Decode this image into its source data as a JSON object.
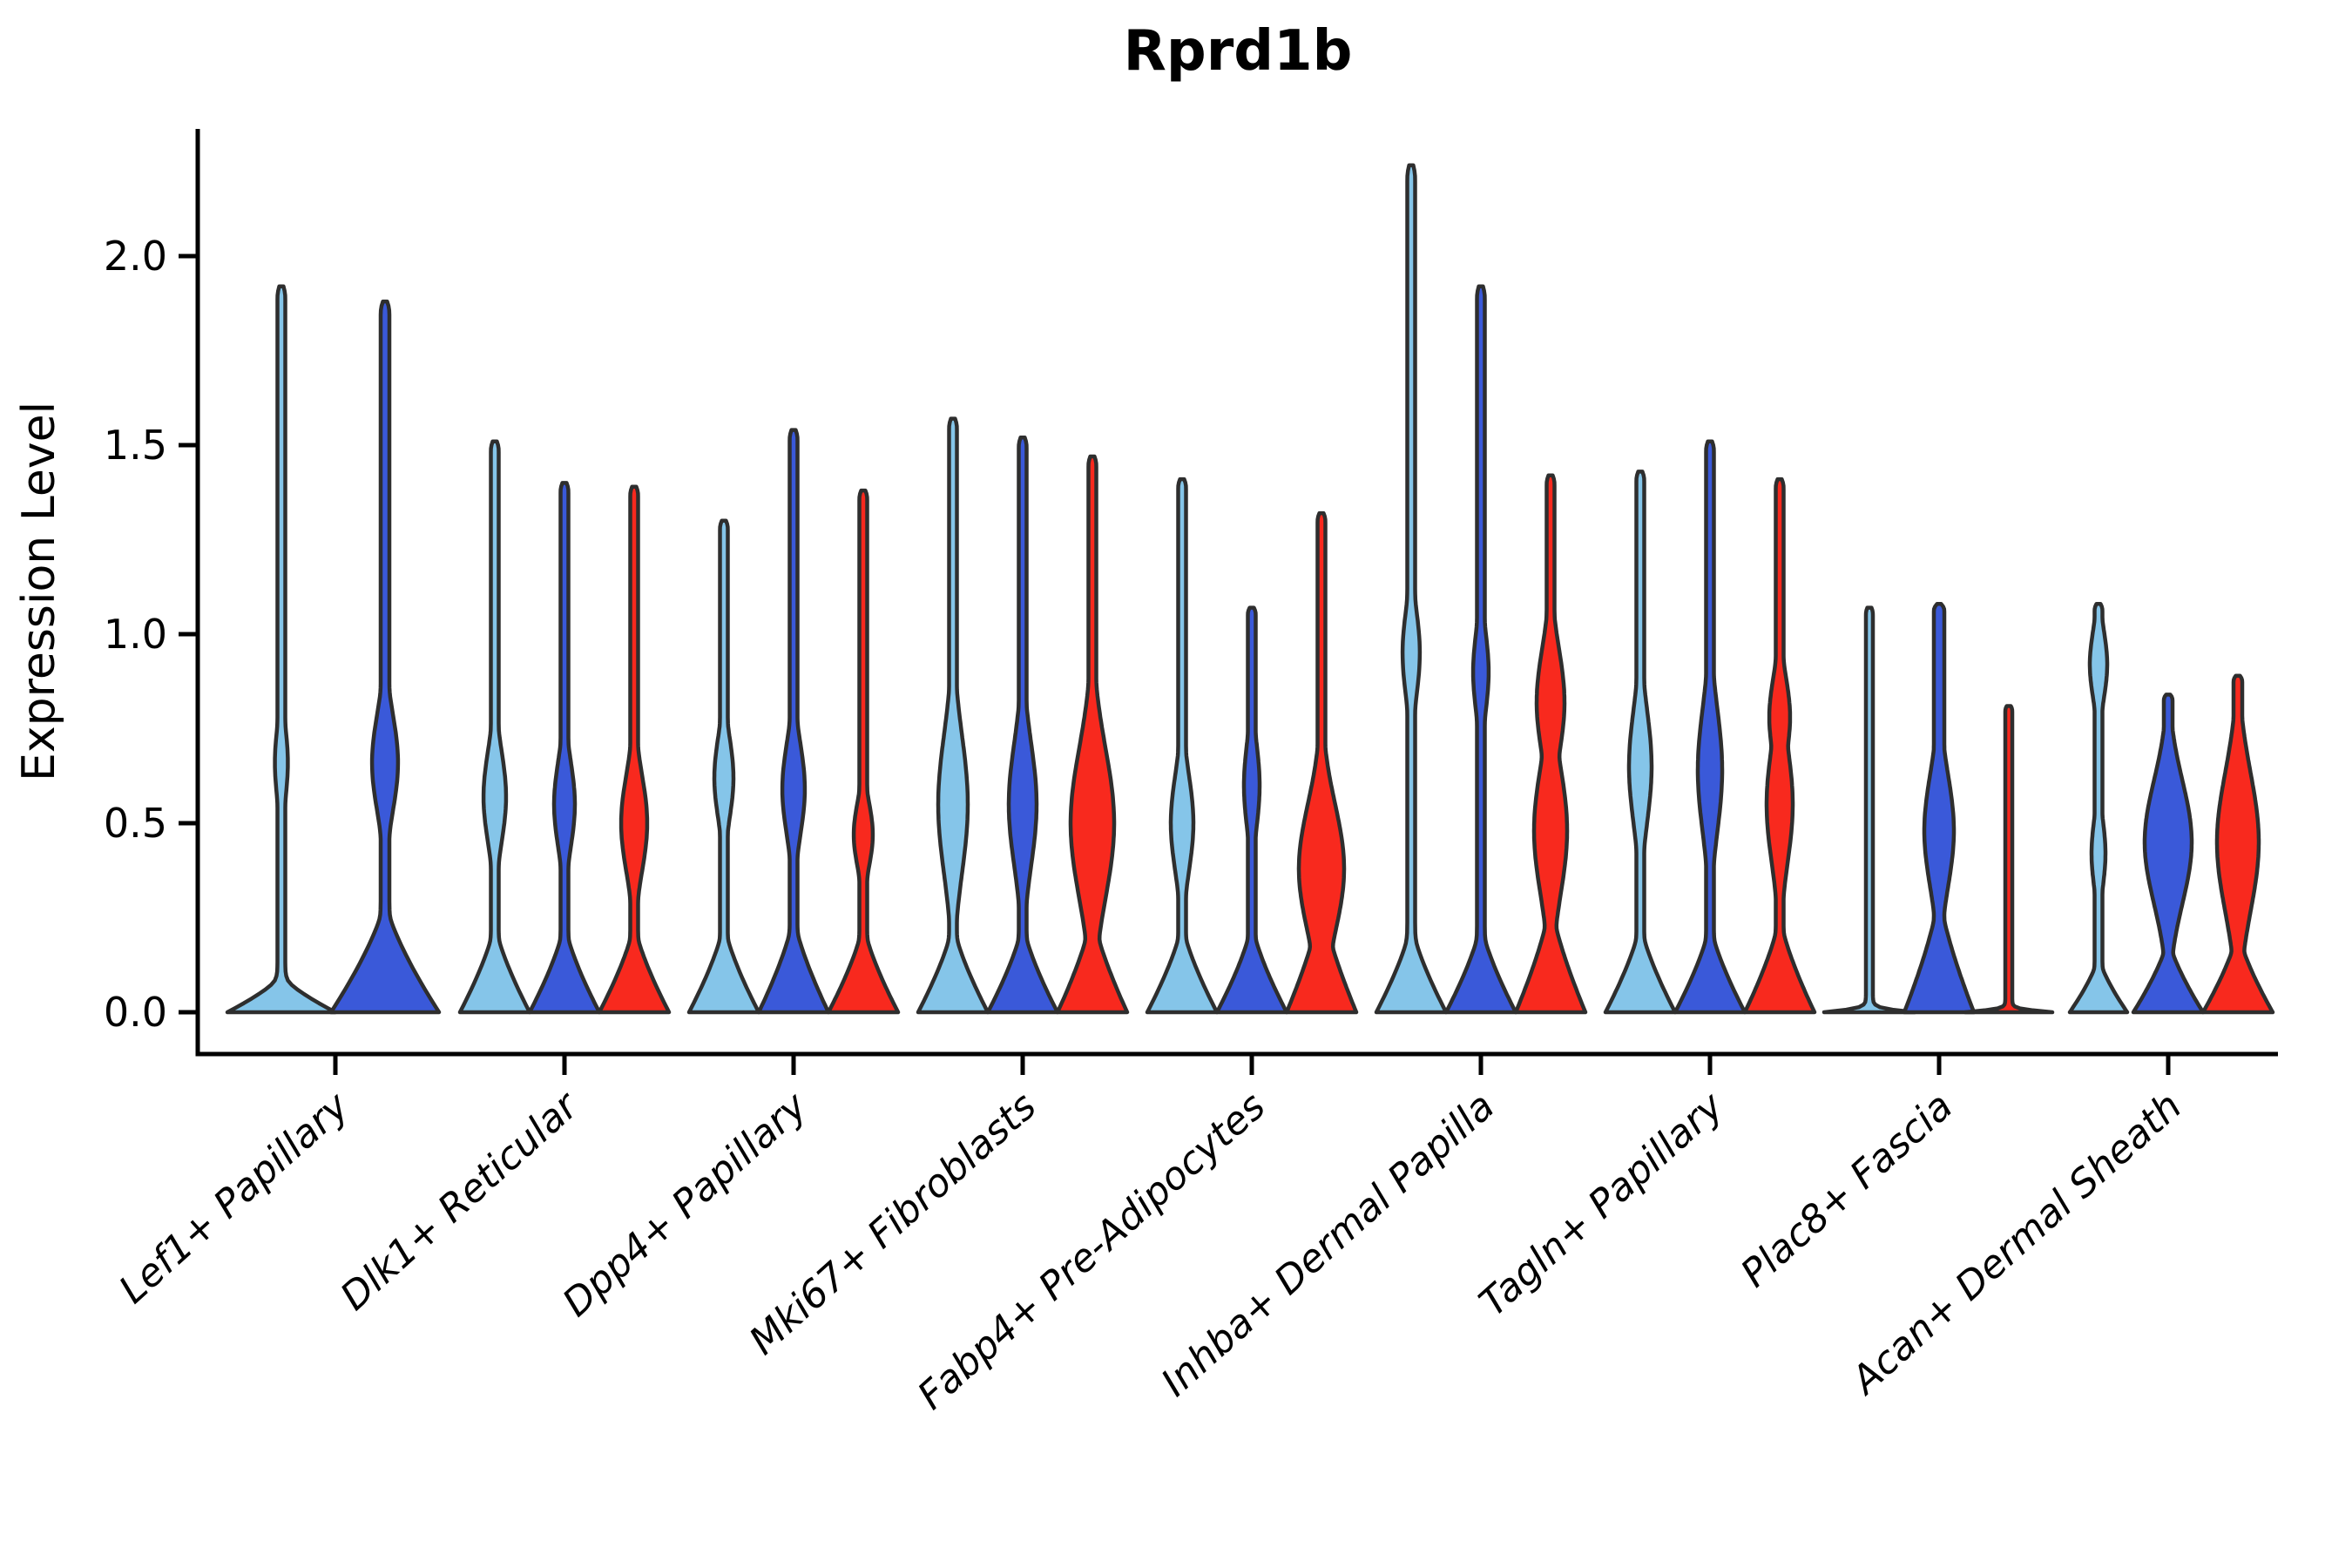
{
  "chart_data": {
    "type": "violin",
    "title": "Rprd1b",
    "ylabel": "Expression Level",
    "xlabel": "",
    "grid": false,
    "legend_position": "none",
    "ylim": [
      -0.11,
      2.34
    ],
    "yticks": {
      "values": [
        0,
        0.5,
        1.0,
        1.5,
        2.0
      ],
      "labels": [
        "0.0",
        "0.5",
        "1.0",
        "1.5",
        "2.0"
      ]
    },
    "series_order": [
      "light_blue",
      "blue",
      "red"
    ],
    "series_colors": {
      "light_blue": "#85C5E9",
      "blue": "#3A59D9",
      "red": "#F8291E"
    },
    "outline_color": "#2E2E2E",
    "axis_color": "#000000",
    "categories": [
      "Lef1+ Papillary",
      "Dlk1+ Reticular",
      "Dpp4+ Papillary",
      "Mki67+ Fibroblasts",
      "Fabp4+ Pre-Adipocytes",
      "Inhba+ Dermal Papilla",
      "Tagln+ Papillary",
      "Plac8+ Fascia",
      "Acan+ Dermal Sheath"
    ],
    "groups": [
      {
        "category": "Lef1+ Papillary",
        "violins": [
          {
            "series": "light_blue",
            "max": 1.92,
            "offset": -62,
            "base_hw": 62,
            "base_h": 0.1,
            "stem_hw": 4.5,
            "bulges": [
              {
                "c": 0.66,
                "h": 0.14,
                "hw": 7.5
              }
            ]
          },
          {
            "series": "blue",
            "max": 1.88,
            "offset": 57,
            "base_hw": 62,
            "base_h": 0.3,
            "stem_hw": 5,
            "bulges": [
              {
                "c": 0.66,
                "h": 0.18,
                "hw": 15
              }
            ]
          }
        ]
      },
      {
        "category": "Dlk1+ Reticular",
        "violins": [
          {
            "series": "light_blue",
            "max": 1.51,
            "offset": -80,
            "base_hw": 40,
            "base_h": 0.24,
            "stem_hw": 4.5,
            "bulges": [
              {
                "c": 0.57,
                "h": 0.17,
                "hw": 13
              }
            ]
          },
          {
            "series": "blue",
            "max": 1.4,
            "offset": 0,
            "base_hw": 40,
            "base_h": 0.24,
            "stem_hw": 4.5,
            "bulges": [
              {
                "c": 0.55,
                "h": 0.16,
                "hw": 12
              }
            ]
          },
          {
            "series": "red",
            "max": 1.39,
            "offset": 80,
            "base_hw": 40,
            "base_h": 0.24,
            "stem_hw": 4.5,
            "bulges": [
              {
                "c": 0.5,
                "h": 0.18,
                "hw": 15
              }
            ]
          }
        ]
      },
      {
        "category": "Dpp4+ Papillary",
        "violins": [
          {
            "series": "light_blue",
            "max": 1.3,
            "offset": -80,
            "base_hw": 40,
            "base_h": 0.24,
            "stem_hw": 4.5,
            "bulges": [
              {
                "c": 0.62,
                "h": 0.15,
                "hw": 11
              }
            ]
          },
          {
            "series": "blue",
            "max": 1.54,
            "offset": 0,
            "base_hw": 40,
            "base_h": 0.26,
            "stem_hw": 4.5,
            "bulges": [
              {
                "c": 0.59,
                "h": 0.17,
                "hw": 13
              }
            ]
          },
          {
            "series": "red",
            "max": 1.38,
            "offset": 80,
            "base_hw": 40,
            "base_h": 0.24,
            "stem_hw": 4.5,
            "bulges": [
              {
                "c": 0.47,
                "h": 0.12,
                "hw": 11
              }
            ]
          }
        ]
      },
      {
        "category": "Mki67+ Fibroblasts",
        "violins": [
          {
            "series": "light_blue",
            "max": 1.57,
            "offset": -80,
            "base_hw": 40,
            "base_h": 0.24,
            "stem_hw": 4.5,
            "bulges": [
              {
                "c": 0.55,
                "h": 0.26,
                "hw": 17
              }
            ]
          },
          {
            "series": "blue",
            "max": 1.52,
            "offset": 0,
            "base_hw": 40,
            "base_h": 0.24,
            "stem_hw": 4.5,
            "bulges": [
              {
                "c": 0.55,
                "h": 0.23,
                "hw": 16
              }
            ]
          },
          {
            "series": "red",
            "max": 1.47,
            "offset": 80,
            "base_hw": 40,
            "base_h": 0.27,
            "stem_hw": 4.5,
            "bulges": [
              {
                "c": 0.5,
                "h": 0.28,
                "hw": 25
              }
            ]
          }
        ]
      },
      {
        "category": "Fabp4+ Pre-Adipocytes",
        "violins": [
          {
            "series": "light_blue",
            "max": 1.41,
            "offset": -80,
            "base_hw": 40,
            "base_h": 0.24,
            "stem_hw": 4.5,
            "bulges": [
              {
                "c": 0.5,
                "h": 0.18,
                "hw": 13
              }
            ]
          },
          {
            "series": "blue",
            "max": 1.07,
            "offset": 0,
            "base_hw": 40,
            "base_h": 0.24,
            "stem_hw": 4.5,
            "bulges": [
              {
                "c": 0.6,
                "h": 0.16,
                "hw": 9
              }
            ]
          },
          {
            "series": "red",
            "max": 1.32,
            "offset": 80,
            "base_hw": 40,
            "base_h": 0.3,
            "stem_hw": 4.5,
            "bulges": [
              {
                "c": 0.38,
                "h": 0.24,
                "hw": 26
              }
            ]
          }
        ]
      },
      {
        "category": "Inhba+ Dermal Papilla",
        "violins": [
          {
            "series": "light_blue",
            "max": 2.24,
            "offset": -80,
            "base_hw": 40,
            "base_h": 0.24,
            "stem_hw": 4.5,
            "bulges": [
              {
                "c": 0.95,
                "h": 0.16,
                "hw": 10
              }
            ]
          },
          {
            "series": "blue",
            "max": 1.92,
            "offset": 0,
            "base_hw": 40,
            "base_h": 0.24,
            "stem_hw": 4.5,
            "bulges": [
              {
                "c": 0.9,
                "h": 0.15,
                "hw": 9
              }
            ]
          },
          {
            "series": "red",
            "max": 1.42,
            "offset": 80,
            "base_hw": 40,
            "base_h": 0.3,
            "stem_hw": 4.5,
            "bulges": [
              {
                "c": 0.48,
                "h": 0.24,
                "hw": 19
              },
              {
                "c": 0.82,
                "h": 0.2,
                "hw": 16
              }
            ]
          }
        ]
      },
      {
        "category": "Tagln+ Papillary",
        "violins": [
          {
            "series": "light_blue",
            "max": 1.43,
            "offset": -80,
            "base_hw": 40,
            "base_h": 0.24,
            "stem_hw": 4.5,
            "bulges": [
              {
                "c": 0.65,
                "h": 0.21,
                "hw": 13
              }
            ]
          },
          {
            "series": "blue",
            "max": 1.51,
            "offset": 0,
            "base_hw": 40,
            "base_h": 0.24,
            "stem_hw": 4.5,
            "bulges": [
              {
                "c": 0.64,
                "h": 0.23,
                "hw": 14
              }
            ]
          },
          {
            "series": "red",
            "max": 1.41,
            "offset": 80,
            "base_hw": 40,
            "base_h": 0.26,
            "stem_hw": 4.5,
            "bulges": [
              {
                "c": 0.55,
                "h": 0.22,
                "hw": 15
              },
              {
                "c": 0.78,
                "h": 0.15,
                "hw": 12
              }
            ]
          }
        ]
      },
      {
        "category": "Plac8+ Fascia",
        "violins": [
          {
            "series": "light_blue",
            "max": 1.07,
            "offset": -80,
            "base_hw": 52,
            "base_h": 0.012,
            "stem_hw": 4,
            "bulges": []
          },
          {
            "series": "blue",
            "max": 1.08,
            "offset": 0,
            "base_hw": 40,
            "base_h": 0.32,
            "stem_hw": 6,
            "bulges": [
              {
                "c": 0.48,
                "h": 0.21,
                "hw": 17
              }
            ]
          },
          {
            "series": "red",
            "max": 0.81,
            "offset": 80,
            "base_hw": 50,
            "base_h": 0.012,
            "stem_hw": 4,
            "bulges": []
          }
        ]
      },
      {
        "category": "Acan+ Dermal Sheath",
        "violins": [
          {
            "series": "light_blue",
            "max": 1.08,
            "offset": -80,
            "base_hw": 33,
            "base_h": 0.15,
            "stem_hw": 4.5,
            "bulges": [
              {
                "c": 0.42,
                "h": 0.13,
                "hw": 8
              },
              {
                "c": 0.92,
                "h": 0.13,
                "hw": 10
              }
            ]
          },
          {
            "series": "blue",
            "max": 0.84,
            "offset": 0,
            "base_hw": 40,
            "base_h": 0.2,
            "stem_hw": 5,
            "bulges": [
              {
                "c": 0.45,
                "h": 0.23,
                "hw": 27
              }
            ]
          },
          {
            "series": "red",
            "max": 0.89,
            "offset": 80,
            "base_hw": 40,
            "base_h": 0.22,
            "stem_hw": 5,
            "bulges": [
              {
                "c": 0.45,
                "h": 0.26,
                "hw": 24
              }
            ]
          }
        ]
      }
    ]
  }
}
